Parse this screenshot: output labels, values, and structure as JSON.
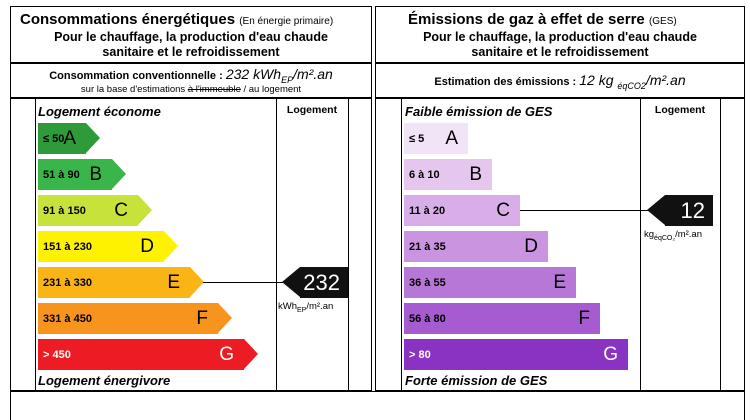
{
  "energy": {
    "title": "Consommations énergétiques",
    "title_note": "(En énergie primaire)",
    "subtitle": [
      "Pour le chauffage, la production d'eau chaude",
      "sanitaire et le refroidissement"
    ],
    "conso_label": "Consommation conventionnelle :",
    "conso_value": "232 kWhEP/m².an",
    "conso_value_main": "232 kWh",
    "conso_value_sub": "EP",
    "conso_value_end": "/m².an",
    "note_pre": "sur la base d'estimations ",
    "note_struck": "à l'immeuble",
    "note_post": " / au logement",
    "scale_top": "Logement économe",
    "scale_bottom": "Logement énergivore",
    "column_label": "Logement",
    "marker_value": "232",
    "marker_unit_main": "kWh",
    "marker_unit_sub": "EP",
    "marker_unit_end": "/m².an",
    "classes": [
      {
        "range": "≤ 50",
        "letter": "A",
        "color": "#2e9a3a"
      },
      {
        "range": "51 à 90",
        "letter": "B",
        "color": "#39b54a"
      },
      {
        "range": "91 à 150",
        "letter": "C",
        "color": "#c7e23a"
      },
      {
        "range": "151 à 230",
        "letter": "D",
        "color": "#fff200"
      },
      {
        "range": "231 à 330",
        "letter": "E",
        "color": "#fbb416"
      },
      {
        "range": "331 à 450",
        "letter": "F",
        "color": "#f7941d"
      },
      {
        "range": "> 450",
        "letter": "G",
        "color": "#ed1c24"
      }
    ],
    "selected_index": 4
  },
  "ges": {
    "title": "Émissions de gaz à effet de serre",
    "title_note": "(GES)",
    "subtitle": [
      "Pour le chauffage, la production d'eau chaude",
      "sanitaire et le refroidissement"
    ],
    "estimate_label": "Estimation des émissions :",
    "estimate_main": "12 kg ",
    "estimate_sub": "éqCO2",
    "estimate_end": "/m².an",
    "scale_top": "Faible émission de GES",
    "scale_bottom": "Forte émission de GES",
    "column_label": "Logement",
    "marker_value": "12",
    "marker_unit_main": "kg",
    "marker_unit_sub": "éqCO₂",
    "marker_unit_end": "/m².an",
    "classes": [
      {
        "range": "≤ 5",
        "letter": "A",
        "color": "#f2e4f7"
      },
      {
        "range": "6 à 10",
        "letter": "B",
        "color": "#e4c6ee"
      },
      {
        "range": "11 à 20",
        "letter": "C",
        "color": "#d9aee8"
      },
      {
        "range": "21 à 35",
        "letter": "D",
        "color": "#ca94e0"
      },
      {
        "range": "36 à 55",
        "letter": "E",
        "color": "#b777d6"
      },
      {
        "range": "56 à 80",
        "letter": "F",
        "color": "#a75bd0"
      },
      {
        "range": "> 80",
        "letter": "G",
        "color": "#8a33c2"
      }
    ],
    "selected_index": 2
  }
}
